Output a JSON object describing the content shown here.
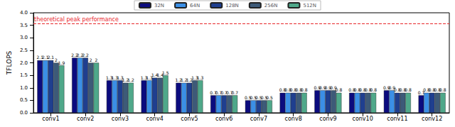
{
  "chart_data": {
    "type": "bar",
    "y_label": "TFLOPS",
    "categories": [
      "conv1",
      "conv2",
      "conv3",
      "conv4",
      "conv5",
      "conv6",
      "conv7",
      "conv8",
      "conv9",
      "conv10",
      "conv11",
      "conv12"
    ],
    "series": [
      {
        "name": "32N",
        "color": "#0b0b7e",
        "values": [
          2.1,
          2.2,
          1.3,
          1.3,
          1.2,
          0.7,
          0.5,
          0.8,
          0.9,
          0.8,
          0.9,
          0.7
        ]
      },
      {
        "name": "64N",
        "color": "#3b8fe6",
        "values": [
          2.1,
          2.2,
          1.3,
          1.3,
          1.2,
          0.7,
          0.5,
          0.8,
          0.9,
          0.8,
          0.9,
          0.8
        ]
      },
      {
        "name": "128N",
        "color": "#1f3f8f",
        "values": [
          2.1,
          2.2,
          1.3,
          1.4,
          1.2,
          0.7,
          0.5,
          0.8,
          0.9,
          0.8,
          0.8,
          0.8
        ]
      },
      {
        "name": "256N",
        "color": "#3d5a78",
        "values": [
          2,
          2,
          1.2,
          1.4,
          1.3,
          0.7,
          0.5,
          0.8,
          0.9,
          0.8,
          0.8,
          0.8
        ]
      },
      {
        "name": "512N",
        "color": "#4fa88a",
        "values": [
          1.9,
          2,
          1.2,
          1.5,
          1.3,
          0.7,
          0.5,
          0.8,
          0.8,
          0.8,
          0.8,
          0.8
        ]
      }
    ],
    "ylim": [
      0,
      4
    ],
    "yticks": [
      {
        "value": 0,
        "label": "0.0"
      },
      {
        "value": 0.5,
        "label": "0.5"
      },
      {
        "value": 1,
        "label": "1.0"
      },
      {
        "value": 1.5,
        "label": "1.5"
      },
      {
        "value": 2,
        "label": "2.0"
      },
      {
        "value": 2.5,
        "label": "2.5"
      },
      {
        "value": 3,
        "label": "3.0"
      },
      {
        "value": 3.5,
        "label": "3.5"
      },
      {
        "value": 4,
        "label": "4.0"
      }
    ],
    "annotations": [
      {
        "text": "theoretical peak performance",
        "y": 3.58,
        "color": "#e8262a",
        "line_style": "dashed"
      }
    ],
    "data_labels": true,
    "legend": "top",
    "grid": false
  }
}
